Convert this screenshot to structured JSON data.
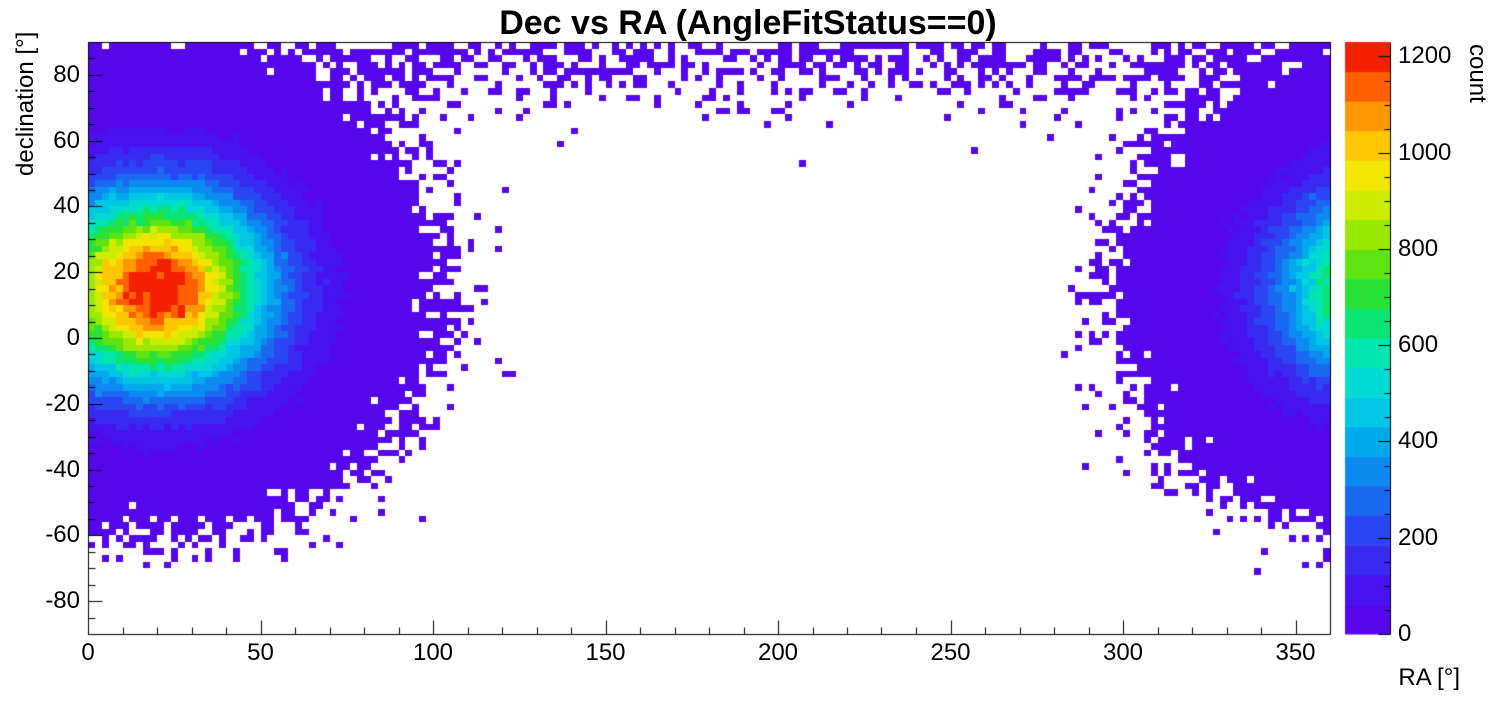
{
  "chart_data": {
    "type": "heatmap",
    "title": "Dec vs RA (AngleFitStatus==0)",
    "xlabel": "RA [°]",
    "ylabel": "declination [°]",
    "zlabel": "count",
    "xlim": [
      0,
      360
    ],
    "ylim": [
      -90,
      90
    ],
    "zlim": [
      0,
      1230
    ],
    "x_major_ticks": [
      0,
      50,
      100,
      150,
      200,
      250,
      300,
      350
    ],
    "x_minor_step": 10,
    "y_major_ticks": [
      -80,
      -60,
      -40,
      -20,
      0,
      20,
      40,
      60,
      80
    ],
    "y_minor_step": 5,
    "z_ticks": [
      0,
      200,
      400,
      600,
      800,
      1000,
      1200
    ],
    "z_minor_step": 50,
    "grid": false,
    "legend": "colorbar-right",
    "background_color": "#ffffff",
    "bins": {
      "nx": 180,
      "ny": 90
    },
    "palette": {
      "levels": 20,
      "stops": [
        [
          0.0,
          "#5c00e8"
        ],
        [
          0.08,
          "#4612f0"
        ],
        [
          0.16,
          "#2e3cf3"
        ],
        [
          0.24,
          "#1773f0"
        ],
        [
          0.32,
          "#00a7ee"
        ],
        [
          0.4,
          "#00d4e2"
        ],
        [
          0.47,
          "#00e6b4"
        ],
        [
          0.54,
          "#0ee460"
        ],
        [
          0.6,
          "#3ede1c"
        ],
        [
          0.66,
          "#8ae800"
        ],
        [
          0.73,
          "#d2ec00"
        ],
        [
          0.79,
          "#fce200"
        ],
        [
          0.85,
          "#ffb300"
        ],
        [
          0.91,
          "#ff7300"
        ],
        [
          0.96,
          "#fb3500"
        ],
        [
          1.0,
          "#e80000"
        ]
      ]
    },
    "model": {
      "description": "2D histogram of declination vs right ascension; dense hotspot near RA 20°, Dec 15° peaking around 1230 counts, wrapping around the RA=360° edge; sparse low-count band along the top (Dec 75°–90°); central region RA 120°–280° essentially empty",
      "hotspots": [
        {
          "ra": 20,
          "dec": 15,
          "amplitude": 1250,
          "sigma_ra": 22,
          "sigma_dec": 20,
          "peak_count": 1230
        },
        {
          "ra": 379,
          "dec": 15,
          "amplitude": 980,
          "sigma_ra": 22,
          "sigma_dec": 20,
          "edge_count_at_360": 675
        }
      ],
      "polar_band": {
        "dec_center": 90,
        "amplitude": 0.9,
        "sigma": 10
      },
      "noise": "poisson",
      "seed": 20
    }
  }
}
